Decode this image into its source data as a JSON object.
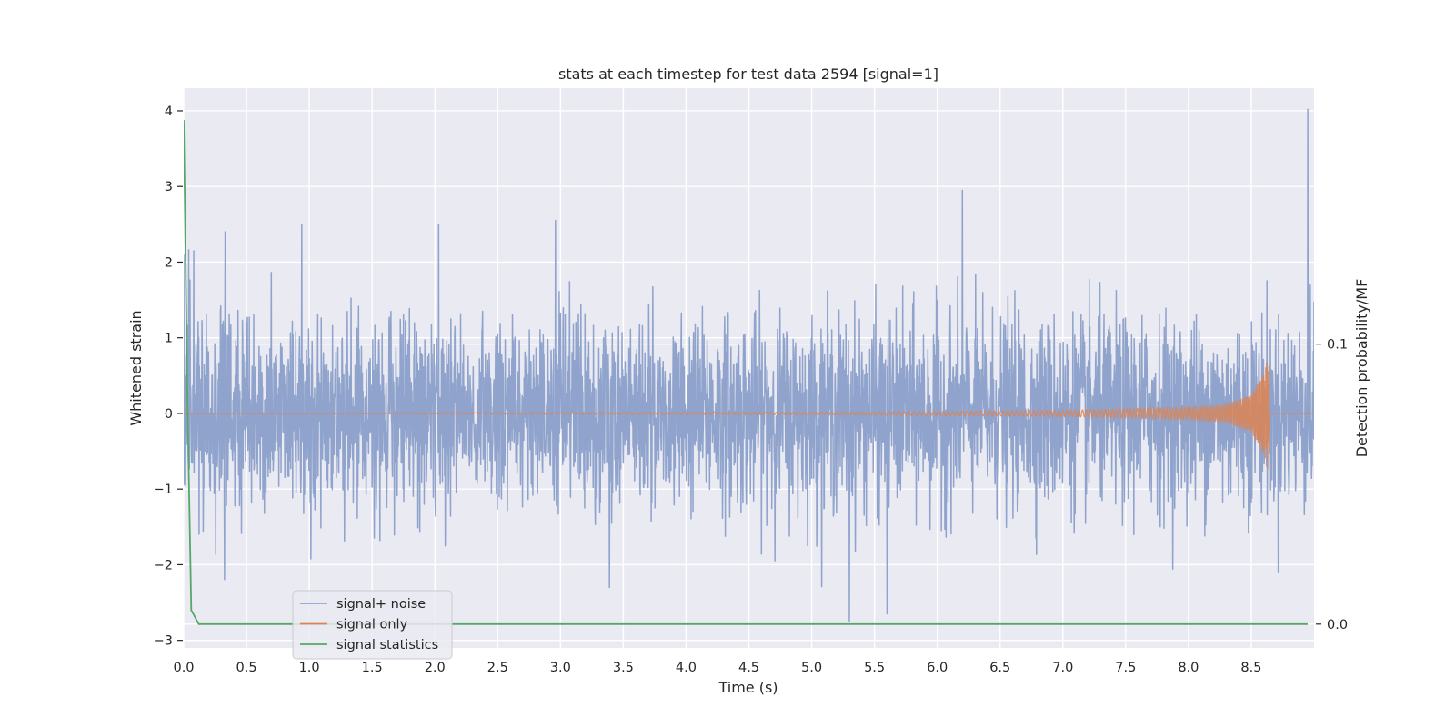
{
  "chart_data": {
    "type": "line",
    "title": "stats at each timestep for test data 2594 [signal=1]",
    "xlabel": "Time (s)",
    "ylabel": "Whitened strain",
    "y2label": "Detection probability/MF",
    "xlim": [
      0,
      9
    ],
    "ylim": [
      -3.1,
      4.3
    ],
    "y2lim": [
      -0.0085,
      0.1914
    ],
    "x_ticks": [
      0.0,
      0.5,
      1.0,
      1.5,
      2.0,
      2.5,
      3.0,
      3.5,
      4.0,
      4.5,
      5.0,
      5.5,
      6.0,
      6.5,
      7.0,
      7.5,
      8.0,
      8.5
    ],
    "x_tick_labels": [
      "0.0",
      "0.5",
      "1.0",
      "1.5",
      "2.0",
      "2.5",
      "3.0",
      "3.5",
      "4.0",
      "4.5",
      "5.0",
      "5.5",
      "6.0",
      "6.5",
      "7.0",
      "7.5",
      "8.0",
      "8.5"
    ],
    "y_ticks": [
      4,
      3,
      2,
      1,
      0,
      -1,
      -2,
      -3
    ],
    "y_tick_labels": [
      "4",
      "3",
      "2",
      "1",
      "0",
      "−1",
      "−2",
      "−3"
    ],
    "y2_ticks": [
      0.1,
      0.0
    ],
    "y2_tick_labels": [
      "0.1",
      "0.0"
    ],
    "grid": true,
    "legend_position": "lower-left",
    "series": [
      {
        "name": "signal+ noise",
        "color": "#8fa3cc",
        "axis": "left",
        "description": "dense whitened noise, mostly within ±1.5, excursions to about ±2.5",
        "x": [
          0.0,
          0.08,
          0.33,
          0.94,
          2.03,
          2.96,
          3.39,
          5.3,
          5.6,
          6.2,
          8.95
        ],
        "values": [
          2.1,
          2.15,
          2.4,
          2.5,
          2.5,
          2.55,
          -2.3,
          -2.75,
          -2.65,
          2.95,
          4.02
        ]
      },
      {
        "name": "signal only",
        "color": "#dd8452",
        "axis": "left",
        "description": "chirp growing toward merger near 8.64 s",
        "x": [
          0.0,
          5.5,
          7.0,
          8.0,
          8.3,
          8.5,
          8.6,
          8.64,
          8.66,
          9.0
        ],
        "values": [
          0.0,
          0.02,
          0.04,
          0.08,
          0.12,
          0.25,
          0.55,
          0.8,
          0.0,
          0.0
        ]
      },
      {
        "name": "signal statistics",
        "color": "#55a868",
        "axis": "right",
        "x": [
          0.0,
          0.03,
          0.06,
          0.12,
          8.95
        ],
        "values": [
          0.18,
          0.08,
          0.005,
          0.0,
          0.0
        ]
      }
    ]
  }
}
